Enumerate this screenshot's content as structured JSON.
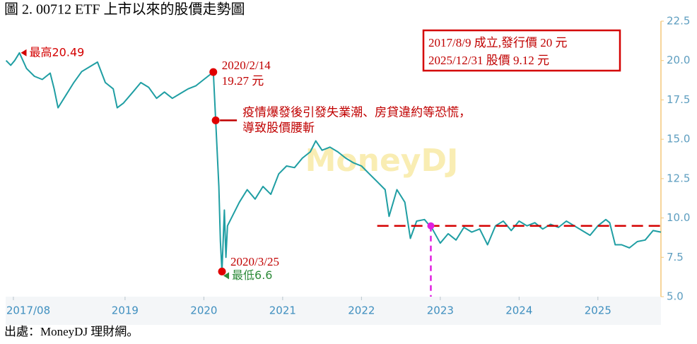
{
  "chart_data": {
    "type": "line",
    "title": "圖 2. 00712 ETF 上市以來的股價走勢圖",
    "source": "出處：MoneyDJ 理財網。",
    "watermark": "MoneyDJ",
    "info_box": [
      "2017/8/9 成立,發行價 20 元",
      "2025/12/31 股價 9.12 元"
    ],
    "xlim": [
      2017.485,
      2025.8
    ],
    "xticks": [
      {
        "value": 2017.583,
        "label": "2017/08"
      },
      2019,
      2020,
      2021,
      2022,
      2023,
      2024,
      2025
    ],
    "ylim": [
      5,
      22.5
    ],
    "yticks": [
      {
        "value": 5,
        "label": "5.0"
      },
      7.5,
      {
        "value": 10,
        "label": "10.0"
      },
      12.5,
      {
        "value": 15,
        "label": "15.0"
      },
      17.5,
      {
        "value": 20,
        "label": "20.0"
      },
      22.5
    ],
    "series": [
      {
        "color": "#1f9ea3",
        "x": [
          2017.49,
          2017.55,
          2017.6,
          2017.66,
          2017.75,
          2017.85,
          2017.95,
          2018.05,
          2018.1,
          2018.15,
          2018.25,
          2018.35,
          2018.45,
          2018.55,
          2018.65,
          2018.75,
          2018.85,
          2018.9,
          2018.98,
          2019.1,
          2019.2,
          2019.3,
          2019.4,
          2019.5,
          2019.6,
          2019.7,
          2019.8,
          2019.9,
          2020.0,
          2020.12,
          2020.15,
          2020.19,
          2020.21,
          2020.23,
          2020.26,
          2020.28,
          2020.3,
          2020.35,
          2020.45,
          2020.55,
          2020.65,
          2020.75,
          2020.85,
          2020.95,
          2021.05,
          2021.15,
          2021.25,
          2021.35,
          2021.42,
          2021.5,
          2021.6,
          2021.7,
          2021.8,
          2021.9,
          2022.0,
          2022.1,
          2022.2,
          2022.3,
          2022.35,
          2022.45,
          2022.55,
          2022.62,
          2022.7,
          2022.8,
          2022.9,
          2023.0,
          2023.1,
          2023.2,
          2023.3,
          2023.4,
          2023.5,
          2023.6,
          2023.7,
          2023.8,
          2023.9,
          2024.0,
          2024.1,
          2024.2,
          2024.3,
          2024.4,
          2024.5,
          2024.6,
          2024.7,
          2024.8,
          2024.9,
          2025.0,
          2025.1,
          2025.15,
          2025.22,
          2025.3,
          2025.4,
          2025.5,
          2025.6,
          2025.7,
          2025.8
        ],
        "values": [
          20.0,
          19.7,
          20.0,
          20.49,
          19.5,
          19.0,
          18.8,
          19.2,
          18.2,
          17.0,
          17.8,
          18.6,
          19.3,
          19.6,
          19.9,
          18.6,
          18.2,
          17.0,
          17.3,
          18.0,
          18.6,
          18.3,
          17.6,
          18.0,
          17.6,
          17.9,
          18.2,
          18.4,
          18.8,
          19.27,
          16.2,
          12.0,
          8.5,
          6.6,
          10.5,
          7.5,
          9.5,
          10.0,
          11.0,
          11.8,
          11.2,
          12.0,
          11.5,
          12.8,
          13.3,
          13.2,
          13.8,
          14.2,
          14.9,
          14.3,
          14.5,
          14.2,
          13.8,
          13.5,
          13.3,
          12.8,
          12.3,
          11.8,
          10.1,
          11.8,
          11.0,
          8.7,
          9.8,
          9.9,
          9.3,
          8.4,
          9.0,
          8.6,
          9.4,
          9.1,
          9.3,
          8.3,
          9.5,
          9.8,
          9.2,
          9.8,
          9.5,
          9.7,
          9.3,
          9.6,
          9.4,
          9.8,
          9.5,
          9.2,
          8.9,
          9.5,
          9.9,
          9.7,
          8.3,
          8.3,
          8.1,
          8.5,
          8.6,
          9.2,
          9.1
        ]
      }
    ],
    "annotations": [
      {
        "x": 2017.66,
        "y": 20.49,
        "label": [
          "最高20.49"
        ]
      },
      {
        "x": 2020.12,
        "y": 19.27,
        "label": [
          "2020/2/14",
          "19.27 元"
        ]
      },
      {
        "x": 2020.15,
        "y": 16.2,
        "label": [
          "疫情爆發後引發失業潮、房貸違約等恐慌，",
          "導致股價腰斬"
        ]
      },
      {
        "x": 2020.23,
        "y": 6.6,
        "label": [
          "2020/3/25"
        ]
      },
      {
        "x": 2020.23,
        "y": 6.6,
        "label": [
          "最低6.6"
        ]
      }
    ],
    "reference_line": {
      "y": 9.5,
      "x_start": 2022.2
    },
    "reference_point": {
      "x": 2022.88,
      "y": 9.5
    }
  }
}
